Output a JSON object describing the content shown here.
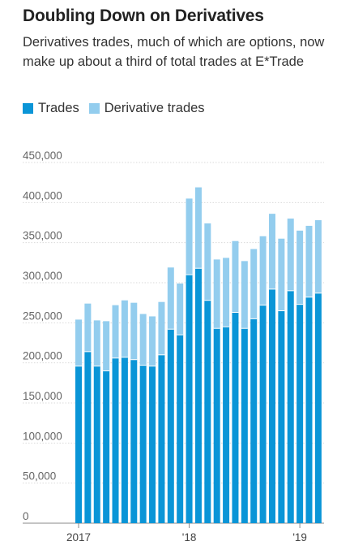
{
  "header": {
    "title": "Doubling Down on Derivatives",
    "subtitle": "Derivatives trades, much of which are options, now make up about a third of total trades at E*Trade"
  },
  "legend": {
    "items": [
      {
        "label": "Trades",
        "color": "#0a95d7"
      },
      {
        "label": "Derivative trades",
        "color": "#93cdee"
      }
    ]
  },
  "chart_data": {
    "type": "bar",
    "stacked": true,
    "title": "Doubling Down on Derivatives",
    "xlabel": "",
    "ylabel": "",
    "ylim": [
      0,
      450000
    ],
    "y_ticks": [
      "0",
      "50,000",
      "100,000",
      "150,000",
      "200,000",
      "250,000",
      "300,000",
      "350,000",
      "400,000",
      "450,000"
    ],
    "x_tick_labels": [
      {
        "label": "2017",
        "index": 0
      },
      {
        "label": "'18",
        "index": 12
      },
      {
        "label": "'19",
        "index": 24
      }
    ],
    "grid": true,
    "series": [
      {
        "name": "Trades",
        "color": "#0a95d7",
        "values": [
          196000,
          214000,
          196000,
          190000,
          206000,
          207000,
          204000,
          197000,
          196000,
          210000,
          242000,
          235000,
          310000,
          318000,
          278000,
          243000,
          245000,
          263000,
          243000,
          255000,
          272000,
          292000,
          265000,
          290000,
          273000,
          282000,
          287000
        ]
      },
      {
        "name": "Derivative trades",
        "color": "#93cdee",
        "values": [
          58000,
          60000,
          57000,
          62000,
          66000,
          71000,
          71000,
          64000,
          62000,
          66000,
          77000,
          64000,
          95000,
          101000,
          96000,
          86000,
          86000,
          89000,
          84000,
          87000,
          86000,
          94000,
          90000,
          90000,
          92000,
          89000,
          91000
        ]
      }
    ]
  }
}
